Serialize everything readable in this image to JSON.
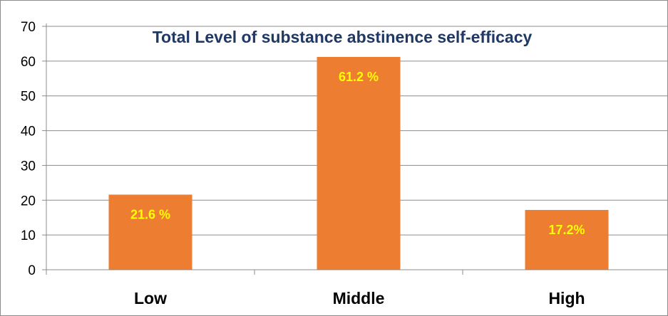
{
  "chart_data": {
    "type": "bar",
    "title": "Total Level of substance abstinence self-efficacy",
    "xlabel": "",
    "ylabel": "",
    "categories": [
      "Low",
      "Middle",
      "High"
    ],
    "values": [
      21.6,
      61.2,
      17.2
    ],
    "data_labels": [
      "21.6 %",
      "61.2 %",
      "17.2%"
    ],
    "ylim": [
      0,
      70
    ],
    "yticks": [
      0,
      10,
      20,
      30,
      40,
      50,
      60,
      70
    ],
    "grid": true,
    "legend": "none",
    "bar_color": "#ed7d31",
    "label_color": "#ffff00",
    "title_color": "#1f3864"
  }
}
